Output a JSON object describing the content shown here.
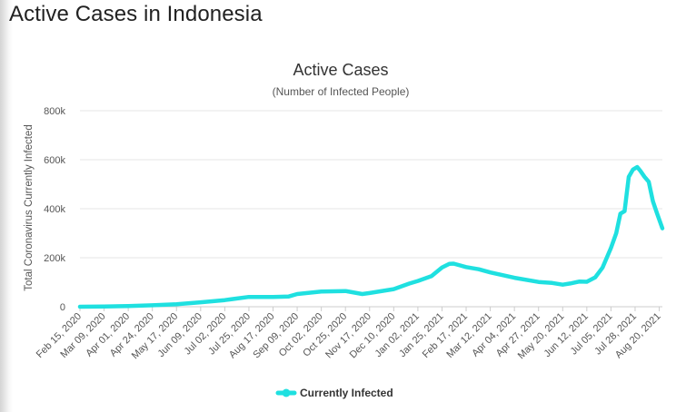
{
  "page": {
    "title": "Active Cases in Indonesia"
  },
  "chart_data": {
    "type": "line",
    "title": "Active Cases",
    "subtitle": "(Number of Infected People)",
    "ylabel": "Total Coronavirus Currently Infected",
    "xlabel": "",
    "ylim": [
      0,
      800000
    ],
    "yticks": [
      0,
      200000,
      400000,
      600000,
      800000
    ],
    "ytick_labels": [
      "0",
      "200k",
      "400k",
      "600k",
      "800k"
    ],
    "x_tick_labels": [
      "Feb 15, 2020",
      "Mar 09, 2020",
      "Apr 01, 2020",
      "Apr 24, 2020",
      "May 17, 2020",
      "Jun 09, 2020",
      "Jul 02, 2020",
      "Jul 25, 2020",
      "Aug 17, 2020",
      "Sep 09, 2020",
      "Oct 02, 2020",
      "Oct 25, 2020",
      "Nov 17, 2020",
      "Dec 10, 2020",
      "Jan 02, 2021",
      "Jan 25, 2021",
      "Feb 17, 2021",
      "Mar 12, 2021",
      "Apr 04, 2021",
      "Apr 27, 2021",
      "May 20, 2021",
      "Jun 12, 2021",
      "Jul 05, 2021",
      "Jul 28, 2021",
      "Aug 20, 2021"
    ],
    "grid": true,
    "legend": "bottom",
    "color": "#1fe0e0",
    "series": [
      {
        "name": "Currently Infected",
        "x": [
          "2020-02-15",
          "2020-03-09",
          "2020-04-01",
          "2020-04-24",
          "2020-05-17",
          "2020-06-09",
          "2020-07-02",
          "2020-07-25",
          "2020-08-17",
          "2020-09-01",
          "2020-09-09",
          "2020-10-02",
          "2020-10-25",
          "2020-11-10",
          "2020-11-17",
          "2020-12-10",
          "2020-12-25",
          "2021-01-02",
          "2021-01-15",
          "2021-01-25",
          "2021-02-01",
          "2021-02-05",
          "2021-02-17",
          "2021-03-01",
          "2021-03-12",
          "2021-04-04",
          "2021-04-27",
          "2021-05-10",
          "2021-05-20",
          "2021-05-27",
          "2021-06-05",
          "2021-06-12",
          "2021-06-20",
          "2021-06-27",
          "2021-07-05",
          "2021-07-10",
          "2021-07-14",
          "2021-07-18",
          "2021-07-22",
          "2021-07-26",
          "2021-07-30",
          "2021-08-02",
          "2021-08-06",
          "2021-08-10",
          "2021-08-14",
          "2021-08-18",
          "2021-08-23"
        ],
        "values": [
          0,
          1000,
          3000,
          6000,
          10000,
          18000,
          27000,
          40000,
          40000,
          42000,
          52000,
          62000,
          64000,
          52000,
          56000,
          72000,
          95000,
          105000,
          125000,
          160000,
          175000,
          176000,
          162000,
          153000,
          140000,
          118000,
          101000,
          97000,
          90000,
          95000,
          103000,
          102000,
          120000,
          160000,
          240000,
          300000,
          380000,
          390000,
          530000,
          560000,
          570000,
          555000,
          530000,
          510000,
          430000,
          380000,
          320000
        ]
      }
    ]
  }
}
